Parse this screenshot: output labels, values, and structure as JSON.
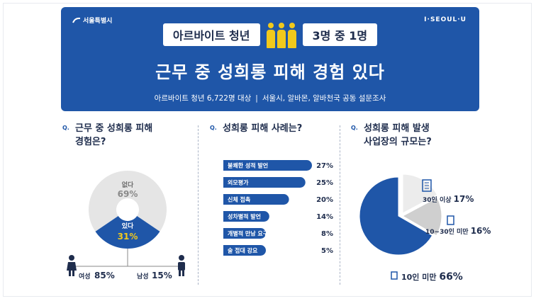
{
  "header": {
    "logo_left": "서울특별시",
    "logo_right": "I·SEOUL·U",
    "pill_left": "아르바이트 청년",
    "pill_right": "3명 중 1명",
    "people_icon": "three-people-icon",
    "main_title": "근무 중 성희롱 피해 경험 있다",
    "subtitle_left": "아르바이트 청년 6,722명 대상",
    "subtitle_sep": "|",
    "subtitle_right": "서울시, 알바몬, 알바천국 공동 설문조사"
  },
  "q_mark": "Q.",
  "questions": {
    "q1": [
      "근무 중 성희롱 피해",
      "경험은?"
    ],
    "q2": [
      "성희롱 피해 사례는?"
    ],
    "q3": [
      "성희롱 피해 발생",
      "사업장의 규모는?"
    ]
  },
  "colors": {
    "primary": "#1f56a8",
    "accent": "#f2c91b",
    "light": "#e5e5e5",
    "mid": "#cfcfcf",
    "dark": "#1f2d4d"
  },
  "chart_data": [
    {
      "type": "pie",
      "labels": [
        "없다",
        "있다"
      ],
      "values": [
        69,
        31
      ],
      "display": [
        "69%",
        "31%"
      ],
      "colors": [
        "#e5e5e5",
        "#1f56a8"
      ],
      "gender": {
        "female_label": "여성",
        "female_value": "85%",
        "male_label": "남성",
        "male_value": "15%"
      }
    },
    {
      "type": "bar",
      "orientation": "horizontal",
      "categories": [
        "불쾌한 성적 발언",
        "외모평가",
        "신체 접촉",
        "성차별적 발언",
        "개별적 만남 요구",
        "술 접대 강요"
      ],
      "values": [
        27,
        25,
        20,
        14,
        8,
        5
      ],
      "display": [
        "27%",
        "25%",
        "20%",
        "14%",
        "8%",
        "5%"
      ]
    },
    {
      "type": "pie",
      "labels": [
        "10인 미만",
        "10~30인 미만",
        "30인 이상"
      ],
      "values": [
        66,
        16,
        17
      ],
      "display": [
        "66%",
        "16%",
        "17%"
      ],
      "colors": [
        "#1f56a8",
        "#cfcfcf",
        "#ececec"
      ]
    }
  ]
}
